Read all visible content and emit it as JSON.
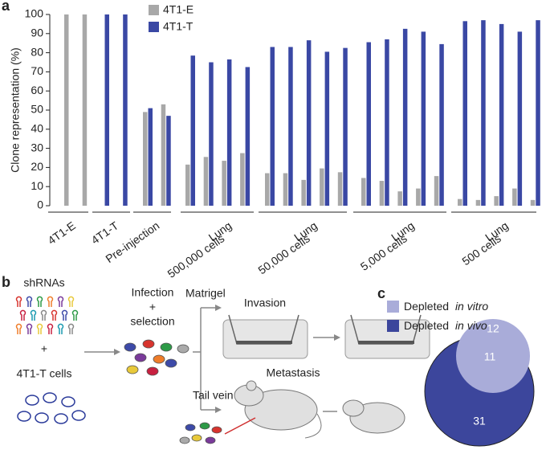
{
  "chart_data": {
    "type": "bar",
    "panel": "a",
    "ylabel": "Clone representation (%)",
    "categories": [
      [
        "4T1-E"
      ],
      [
        "4T1-T"
      ],
      [
        "Pre-injection"
      ],
      [
        "Lung",
        "500,000 cells"
      ],
      [
        "Lung",
        "50,000 cells"
      ],
      [
        "Lung",
        "5,000 cells"
      ],
      [
        "Lung",
        "500 cells"
      ]
    ],
    "series": [
      {
        "name": "4T1-E",
        "color": "#a8a8a8",
        "values": [
          [
            100,
            100
          ],
          [
            0,
            0
          ],
          [
            49,
            53
          ],
          [
            21.5,
            25.5,
            23.5,
            27.5
          ],
          [
            17,
            17,
            13.5,
            19.5,
            17.5
          ],
          [
            14.5,
            13,
            7.5,
            9,
            15.5
          ],
          [
            3.5,
            3,
            5,
            9,
            3
          ]
        ]
      },
      {
        "name": "4T1-T",
        "color": "#3a48a4",
        "values": [
          [
            0,
            0
          ],
          [
            100,
            100
          ],
          [
            51,
            47
          ],
          [
            78.5,
            75,
            76.5,
            72.5
          ],
          [
            83,
            83,
            86.5,
            80.5,
            82.5
          ],
          [
            85.5,
            87,
            92.5,
            91,
            84.5
          ],
          [
            96.5,
            97,
            95,
            91,
            97
          ]
        ]
      }
    ],
    "ylim": [
      0,
      100
    ],
    "yticks": [
      0,
      10,
      20,
      30,
      40,
      50,
      60,
      70,
      80,
      90,
      100
    ]
  },
  "diagram": {
    "panel": "b",
    "shrnas": "shRNAs",
    "plus1": "+",
    "cells": "4T1-T cells",
    "infection": [
      "Infection",
      "+",
      "selection"
    ],
    "matrigel": "Matrigel",
    "invasion": "Invasion",
    "metastasis": "Metastasis",
    "tail_vein": "Tail vein"
  },
  "venn": {
    "panel": "c",
    "legend": [
      {
        "text": "Depleted ",
        "italic": "in vitro",
        "color": "#a9acd9"
      },
      {
        "text": "Depleted ",
        "italic": "in vivo",
        "color": "#3c469c"
      }
    ],
    "only_vitro": 12,
    "both": 11,
    "only_vivo": 31
  }
}
